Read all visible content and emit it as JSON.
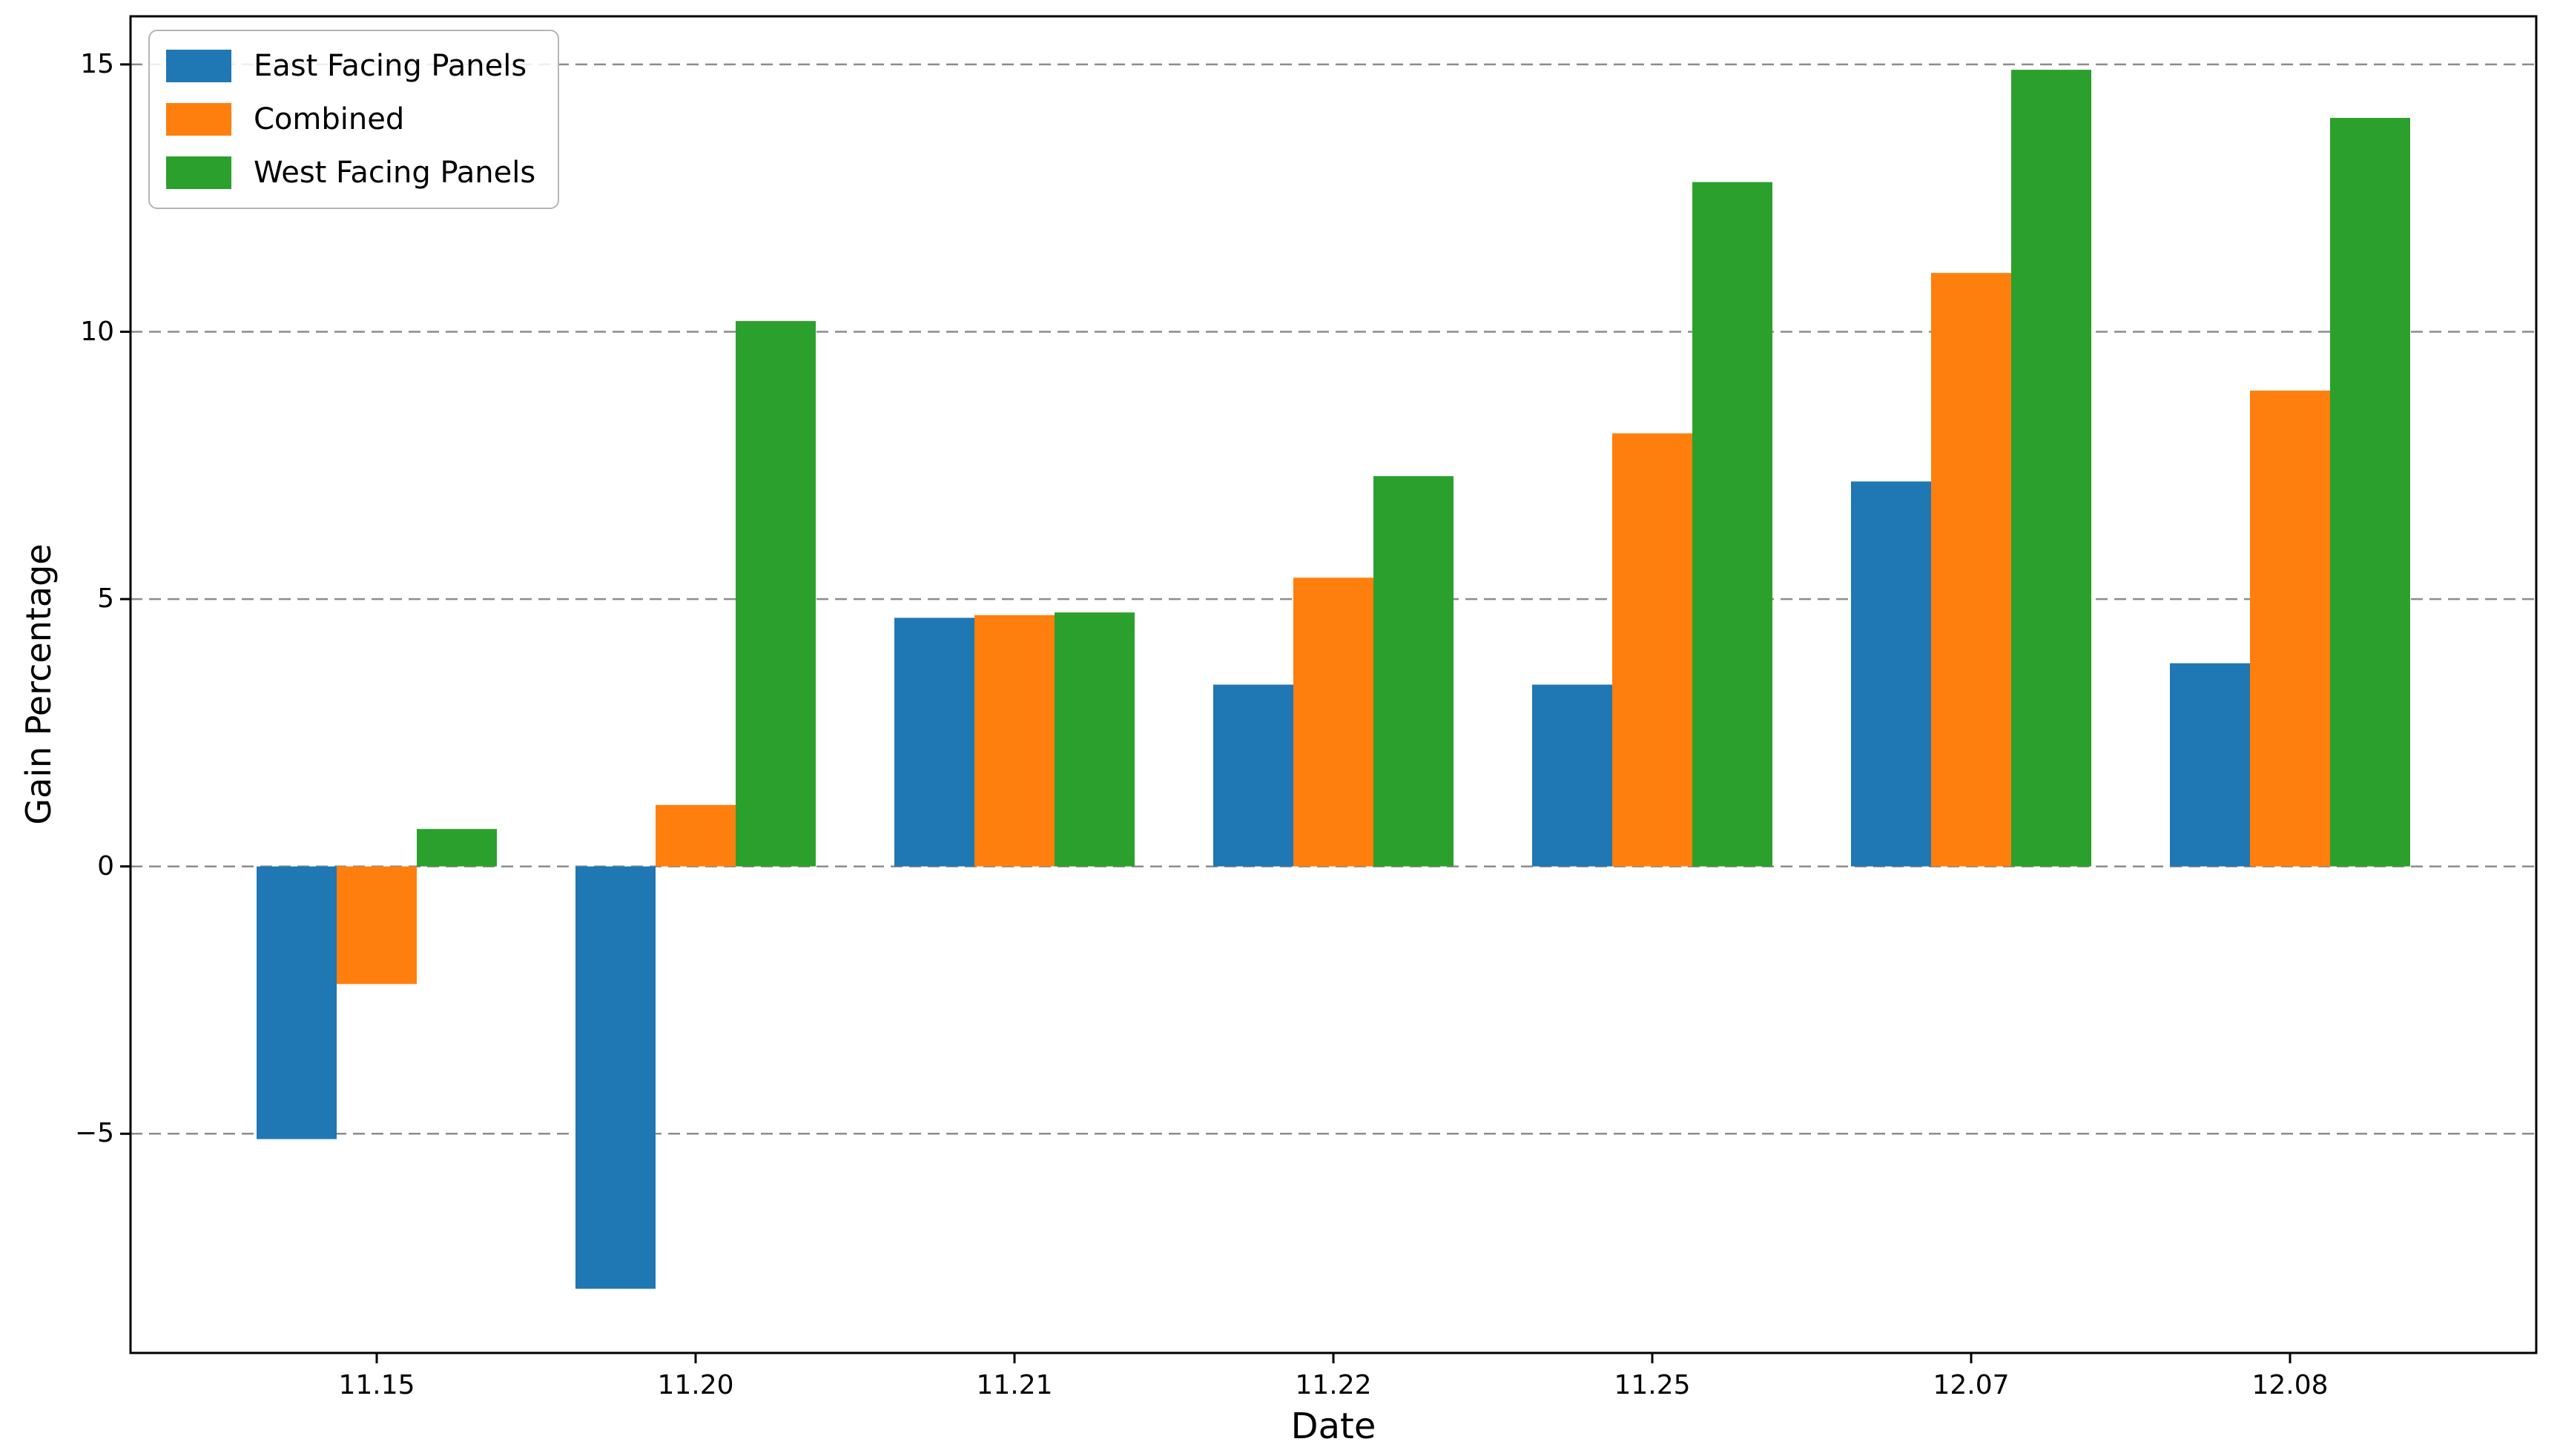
{
  "chart_data": {
    "type": "bar",
    "title": "",
    "xlabel": "Date",
    "ylabel": "Gain Percentage",
    "categories": [
      "11.15",
      "11.20",
      "11.21",
      "11.22",
      "11.25",
      "12.07",
      "12.08"
    ],
    "series": [
      {
        "name": "East Facing Panels",
        "color": "#1f77b4",
        "values": [
          -5.1,
          -7.9,
          4.65,
          3.4,
          3.4,
          7.2,
          3.8
        ]
      },
      {
        "name": "Combined",
        "color": "#ff7f0e",
        "values": [
          -2.2,
          1.15,
          4.7,
          5.4,
          8.1,
          11.1,
          8.9
        ]
      },
      {
        "name": "West Facing Panels",
        "color": "#2ca02c",
        "values": [
          0.7,
          10.2,
          4.75,
          7.3,
          12.8,
          14.9,
          14.0
        ]
      }
    ],
    "ylim": [
      -9.1,
      15.9
    ],
    "yticks": [
      15,
      10,
      5,
      0,
      -5
    ],
    "ytick_labels": [
      "15",
      "10",
      "5",
      "0",
      "−5"
    ],
    "grid": {
      "axis": "y",
      "style": "dashed",
      "color": "#8c8c8c"
    },
    "legend_position": "upper left",
    "axis_color": "#000000",
    "background_color": "#ffffff"
  }
}
